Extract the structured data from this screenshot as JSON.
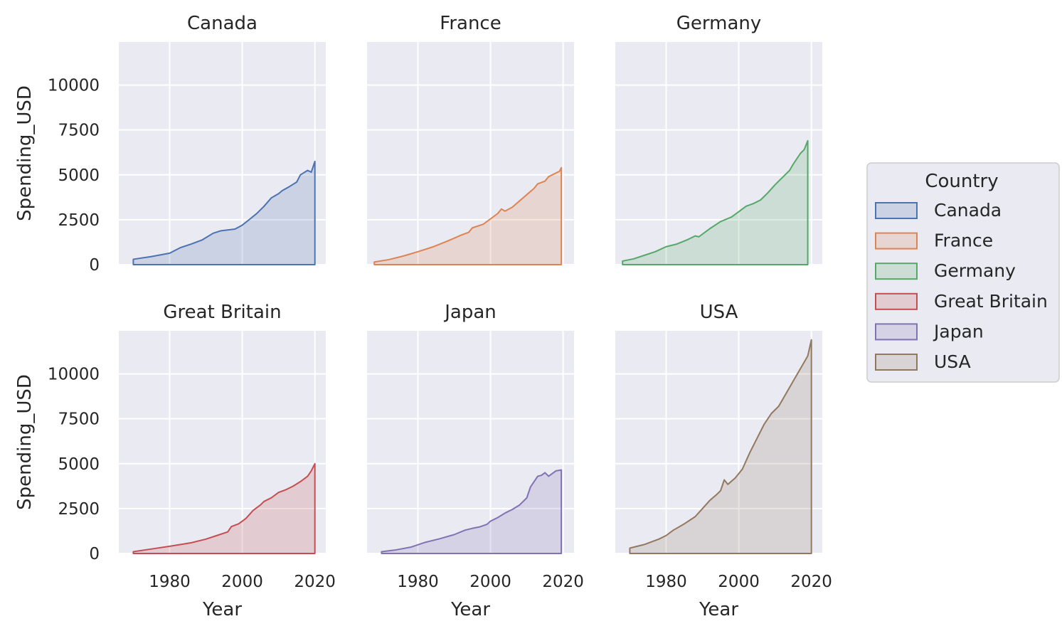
{
  "chart_data": {
    "type": "area",
    "legend": {
      "title": "Country",
      "placement": "right"
    },
    "xlabel": "Year",
    "ylabel": "Spending_USD",
    "xlim": [
      1966,
      2023
    ],
    "ylim": [
      0,
      12400
    ],
    "xticks": [
      1980,
      2000,
      2020
    ],
    "yticks": [
      0,
      2500,
      5000,
      7500,
      10000
    ],
    "grid": true,
    "series": [
      {
        "name": "Canada",
        "color": "#4c72b0",
        "points": [
          [
            1970,
            300
          ],
          [
            1975,
            450
          ],
          [
            1980,
            640
          ],
          [
            1983,
            950
          ],
          [
            1986,
            1150
          ],
          [
            1989,
            1380
          ],
          [
            1992,
            1750
          ],
          [
            1994,
            1880
          ],
          [
            1996,
            1930
          ],
          [
            1998,
            1980
          ],
          [
            2000,
            2200
          ],
          [
            2002,
            2520
          ],
          [
            2004,
            2850
          ],
          [
            2006,
            3250
          ],
          [
            2008,
            3720
          ],
          [
            2010,
            3950
          ],
          [
            2011,
            4120
          ],
          [
            2013,
            4350
          ],
          [
            2015,
            4600
          ],
          [
            2016,
            5000
          ],
          [
            2018,
            5250
          ],
          [
            2019,
            5150
          ],
          [
            2020,
            5750
          ]
        ]
      },
      {
        "name": "France",
        "color": "#dd8452",
        "points": [
          [
            1968,
            150
          ],
          [
            1972,
            280
          ],
          [
            1976,
            480
          ],
          [
            1980,
            720
          ],
          [
            1984,
            980
          ],
          [
            1988,
            1300
          ],
          [
            1992,
            1650
          ],
          [
            1994,
            1800
          ],
          [
            1995,
            2050
          ],
          [
            1998,
            2250
          ],
          [
            2000,
            2550
          ],
          [
            2002,
            2850
          ],
          [
            2003,
            3100
          ],
          [
            2004,
            2980
          ],
          [
            2006,
            3200
          ],
          [
            2008,
            3550
          ],
          [
            2010,
            3900
          ],
          [
            2012,
            4250
          ],
          [
            2013,
            4500
          ],
          [
            2015,
            4650
          ],
          [
            2016,
            4900
          ],
          [
            2018,
            5100
          ],
          [
            2019,
            5200
          ],
          [
            2019.5,
            5400
          ]
        ]
      },
      {
        "name": "Germany",
        "color": "#55a868",
        "points": [
          [
            1968,
            200
          ],
          [
            1971,
            320
          ],
          [
            1974,
            520
          ],
          [
            1977,
            720
          ],
          [
            1980,
            1000
          ],
          [
            1983,
            1150
          ],
          [
            1986,
            1400
          ],
          [
            1988,
            1600
          ],
          [
            1989,
            1550
          ],
          [
            1992,
            2000
          ],
          [
            1995,
            2400
          ],
          [
            1998,
            2650
          ],
          [
            2000,
            2950
          ],
          [
            2002,
            3250
          ],
          [
            2004,
            3400
          ],
          [
            2006,
            3600
          ],
          [
            2008,
            4000
          ],
          [
            2010,
            4450
          ],
          [
            2012,
            4850
          ],
          [
            2014,
            5250
          ],
          [
            2015,
            5600
          ],
          [
            2017,
            6200
          ],
          [
            2018,
            6400
          ],
          [
            2019,
            6900
          ]
        ]
      },
      {
        "name": "Great Britain",
        "color": "#c44e52",
        "points": [
          [
            1970,
            100
          ],
          [
            1975,
            250
          ],
          [
            1980,
            400
          ],
          [
            1983,
            500
          ],
          [
            1986,
            600
          ],
          [
            1990,
            800
          ],
          [
            1993,
            1000
          ],
          [
            1996,
            1200
          ],
          [
            1997,
            1500
          ],
          [
            1999,
            1650
          ],
          [
            2001,
            1950
          ],
          [
            2003,
            2400
          ],
          [
            2005,
            2700
          ],
          [
            2006,
            2900
          ],
          [
            2008,
            3100
          ],
          [
            2010,
            3400
          ],
          [
            2012,
            3550
          ],
          [
            2014,
            3750
          ],
          [
            2016,
            4000
          ],
          [
            2018,
            4300
          ],
          [
            2019,
            4600
          ],
          [
            2020,
            5000
          ]
        ]
      },
      {
        "name": "Japan",
        "color": "#8172b3",
        "points": [
          [
            1970,
            100
          ],
          [
            1974,
            200
          ],
          [
            1978,
            350
          ],
          [
            1982,
            620
          ],
          [
            1986,
            820
          ],
          [
            1990,
            1050
          ],
          [
            1993,
            1300
          ],
          [
            1995,
            1400
          ],
          [
            1997,
            1480
          ],
          [
            1999,
            1620
          ],
          [
            2000,
            1800
          ],
          [
            2002,
            2000
          ],
          [
            2004,
            2250
          ],
          [
            2006,
            2450
          ],
          [
            2008,
            2700
          ],
          [
            2010,
            3100
          ],
          [
            2011,
            3700
          ],
          [
            2013,
            4300
          ],
          [
            2014,
            4350
          ],
          [
            2015,
            4500
          ],
          [
            2016,
            4300
          ],
          [
            2017,
            4450
          ],
          [
            2018,
            4600
          ],
          [
            2019.5,
            4650
          ]
        ]
      },
      {
        "name": "USA",
        "color": "#937860",
        "points": [
          [
            1970,
            300
          ],
          [
            1974,
            500
          ],
          [
            1978,
            800
          ],
          [
            1980,
            1000
          ],
          [
            1982,
            1300
          ],
          [
            1985,
            1650
          ],
          [
            1988,
            2050
          ],
          [
            1990,
            2500
          ],
          [
            1992,
            2950
          ],
          [
            1994,
            3300
          ],
          [
            1995,
            3500
          ],
          [
            1996,
            4100
          ],
          [
            1997,
            3850
          ],
          [
            1999,
            4200
          ],
          [
            2001,
            4700
          ],
          [
            2003,
            5600
          ],
          [
            2005,
            6400
          ],
          [
            2007,
            7200
          ],
          [
            2009,
            7800
          ],
          [
            2011,
            8200
          ],
          [
            2013,
            8900
          ],
          [
            2015,
            9600
          ],
          [
            2017,
            10300
          ],
          [
            2019,
            11000
          ],
          [
            2020,
            11900
          ]
        ]
      }
    ]
  }
}
